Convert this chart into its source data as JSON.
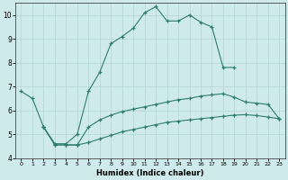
{
  "xlabel": "Humidex (Indice chaleur)",
  "bg_color": "#ceeaea",
  "grid_color": "#b8d8d8",
  "line_color": "#2e7d6e",
  "line1": {
    "x": [
      0,
      1,
      2,
      3,
      4,
      5,
      6,
      7,
      8,
      9,
      10,
      11,
      12,
      13,
      14,
      15,
      16,
      17,
      18,
      19
    ],
    "y": [
      6.8,
      6.5,
      5.3,
      4.6,
      4.6,
      5.0,
      6.8,
      7.6,
      8.8,
      9.1,
      9.45,
      10.1,
      10.35,
      9.75,
      9.75,
      10.0,
      9.7,
      9.5,
      7.8,
      7.8
    ]
  },
  "line2": {
    "x": [
      2,
      3,
      4,
      5,
      6,
      7,
      8,
      9,
      10,
      11,
      12,
      13,
      14,
      15,
      16,
      17,
      18,
      19,
      20,
      21,
      22,
      23
    ],
    "y": [
      5.3,
      4.55,
      4.55,
      4.55,
      5.3,
      5.6,
      5.8,
      5.95,
      6.05,
      6.15,
      6.25,
      6.35,
      6.45,
      6.5,
      6.6,
      6.65,
      6.7,
      6.55,
      6.35,
      6.3,
      6.25,
      5.65
    ]
  },
  "line3": {
    "x": [
      2,
      3,
      4,
      5,
      6,
      7,
      8,
      9,
      10,
      11,
      12,
      13,
      14,
      15,
      16,
      17,
      18,
      19,
      20,
      21,
      22,
      23
    ],
    "y": [
      5.3,
      4.55,
      4.55,
      4.55,
      4.65,
      4.8,
      4.95,
      5.1,
      5.2,
      5.3,
      5.4,
      5.5,
      5.55,
      5.6,
      5.65,
      5.7,
      5.75,
      5.8,
      5.82,
      5.78,
      5.72,
      5.65
    ]
  },
  "xlim": [
    -0.5,
    23.5
  ],
  "ylim": [
    4,
    10.5
  ],
  "yticks": [
    4,
    5,
    6,
    7,
    8,
    9,
    10
  ],
  "xticks": [
    0,
    1,
    2,
    3,
    4,
    5,
    6,
    7,
    8,
    9,
    10,
    11,
    12,
    13,
    14,
    15,
    16,
    17,
    18,
    19,
    20,
    21,
    22,
    23
  ]
}
